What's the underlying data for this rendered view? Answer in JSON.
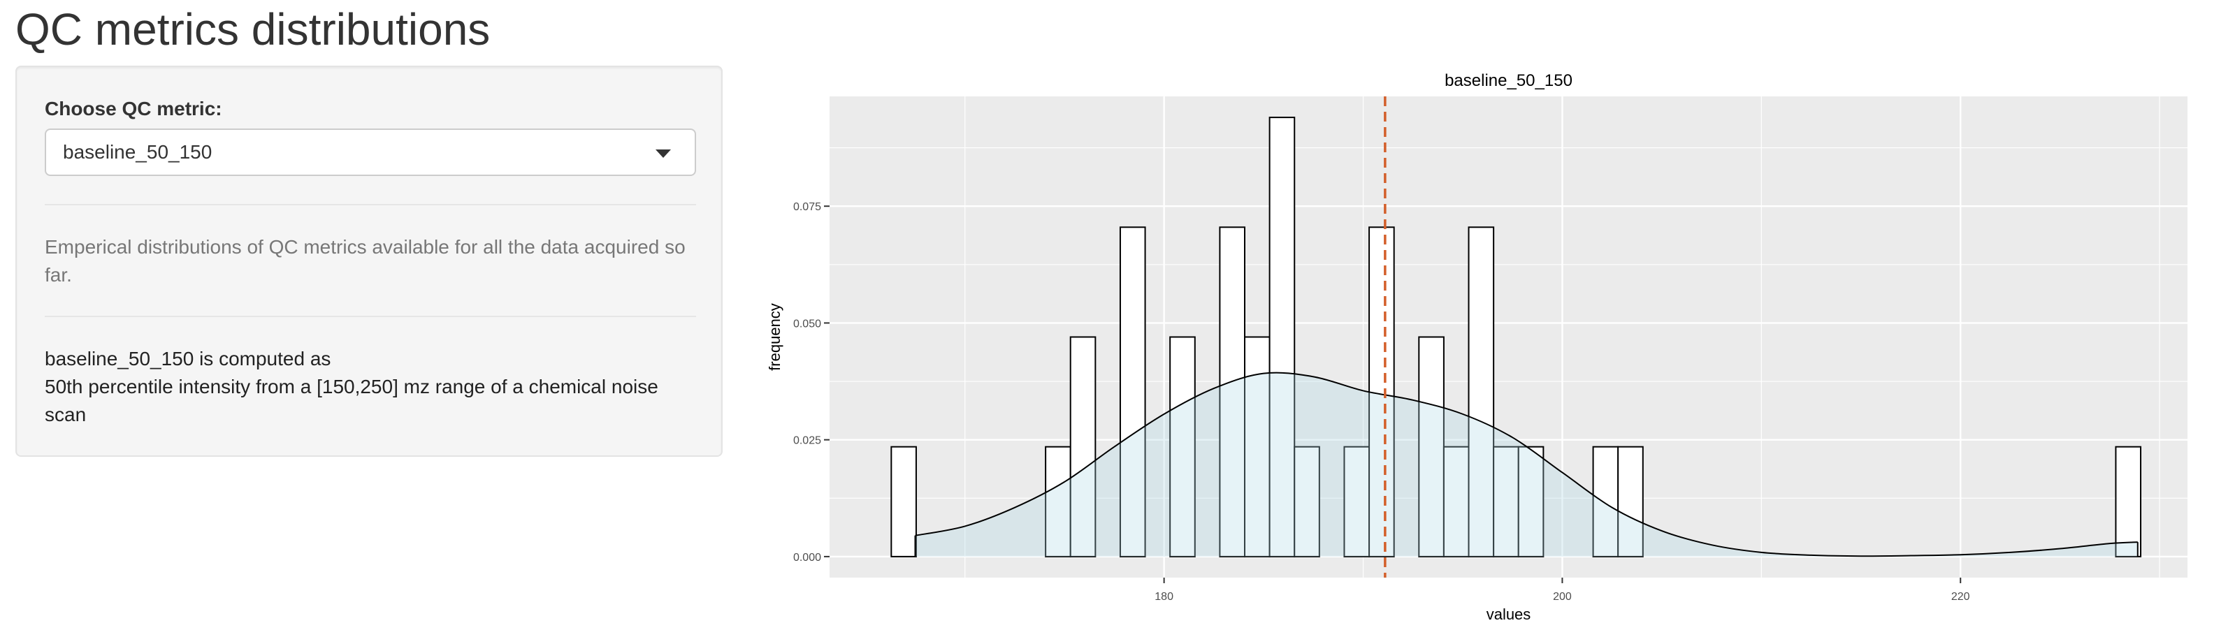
{
  "page": {
    "title": "QC metrics distributions"
  },
  "sidebar": {
    "select_label": "Choose QC metric:",
    "select_value": "baseline_50_150",
    "description": "Emperical distributions of QC metrics available for all the data acquired so far.",
    "computed_line1": "baseline_50_150 is computed as",
    "computed_line2": "50th percentile intensity from a [150,250] mz range of a chemical noise scan"
  },
  "colors": {
    "panel_bg": "#f5f5f5",
    "plot_bg": "#ebebeb",
    "grid": "#ffffff",
    "bar_fill": "#ffffff",
    "density_fill": "#add8e6",
    "vline": "#d35f2a"
  },
  "chart_data": {
    "type": "histogram+density",
    "title": "baseline_50_150",
    "xlabel": "values",
    "ylabel": "frequency",
    "xlim": [
      163.2,
      231.4
    ],
    "ylim": [
      -0.0045,
      0.0985
    ],
    "x_ticks": [
      180,
      200,
      220
    ],
    "x_tick_labels": [
      "180",
      "200",
      "220"
    ],
    "y_ticks": [
      0,
      0.025,
      0.05,
      0.075
    ],
    "y_tick_labels": [
      "0.000",
      "0.025",
      "0.050",
      "0.075"
    ],
    "bin_width": 1.25,
    "bins": [
      {
        "x0": 166.3,
        "x1": 167.55,
        "y": 0.0235
      },
      {
        "x0": 174.05,
        "x1": 175.3,
        "y": 0.0235
      },
      {
        "x0": 175.3,
        "x1": 176.55,
        "y": 0.047
      },
      {
        "x0": 177.8,
        "x1": 179.05,
        "y": 0.0705
      },
      {
        "x0": 180.3,
        "x1": 181.55,
        "y": 0.047
      },
      {
        "x0": 182.8,
        "x1": 184.05,
        "y": 0.0705
      },
      {
        "x0": 184.05,
        "x1": 185.3,
        "y": 0.047
      },
      {
        "x0": 185.3,
        "x1": 186.55,
        "y": 0.094
      },
      {
        "x0": 186.55,
        "x1": 187.8,
        "y": 0.0235
      },
      {
        "x0": 189.05,
        "x1": 190.3,
        "y": 0.0235
      },
      {
        "x0": 190.3,
        "x1": 191.55,
        "y": 0.0705
      },
      {
        "x0": 192.8,
        "x1": 194.05,
        "y": 0.047
      },
      {
        "x0": 194.05,
        "x1": 195.3,
        "y": 0.0235
      },
      {
        "x0": 195.3,
        "x1": 196.55,
        "y": 0.0705
      },
      {
        "x0": 196.55,
        "x1": 197.8,
        "y": 0.0235
      },
      {
        "x0": 197.8,
        "x1": 199.05,
        "y": 0.0235
      },
      {
        "x0": 201.55,
        "x1": 202.8,
        "y": 0.0235
      },
      {
        "x0": 202.8,
        "x1": 204.05,
        "y": 0.0235
      },
      {
        "x0": 227.8,
        "x1": 229.05,
        "y": 0.0235
      }
    ],
    "density": {
      "x": [
        167.5,
        170,
        172.5,
        175,
        177.5,
        180,
        182.5,
        185,
        187.5,
        190,
        192.5,
        195,
        197.5,
        200,
        202.5,
        205,
        207.5,
        210,
        212.5,
        215,
        217.5,
        220,
        222.5,
        225,
        227.5,
        228.9
      ],
      "y": [
        0.0045,
        0.0065,
        0.0105,
        0.016,
        0.0235,
        0.0305,
        0.036,
        0.0392,
        0.0385,
        0.0355,
        0.0335,
        0.0305,
        0.0255,
        0.018,
        0.0105,
        0.0055,
        0.0025,
        0.0009,
        0.0003,
        0.0001,
        0.0002,
        0.0004,
        0.0009,
        0.0017,
        0.0028,
        0.0031
      ]
    },
    "vline_x": 191.1,
    "grid": true,
    "legend": "none"
  }
}
